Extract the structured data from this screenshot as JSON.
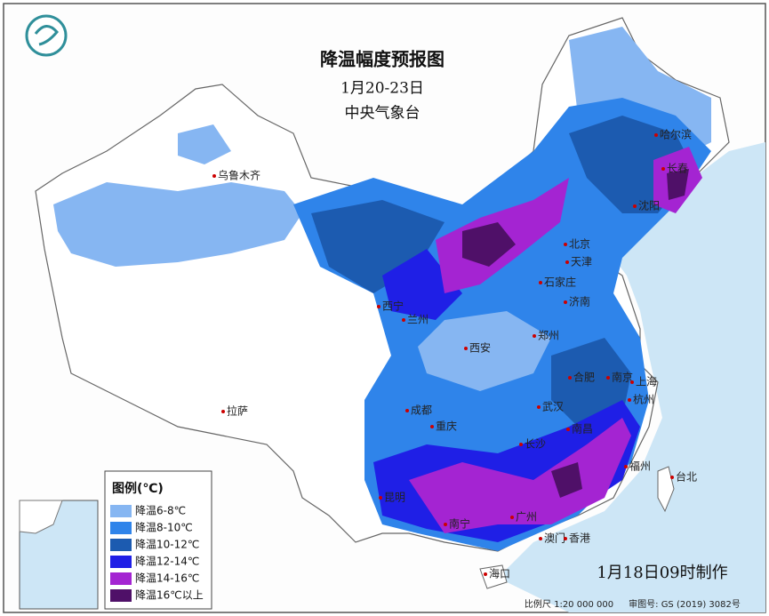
{
  "header": {
    "title": "降温幅度预报图",
    "date": "1月20-23日",
    "issuer": "中央气象台"
  },
  "legend": {
    "title": "图例(℃)",
    "items": [
      {
        "label": "降温6-8℃",
        "color": "#86b6f2"
      },
      {
        "label": "降温8-10℃",
        "color": "#2f84ea"
      },
      {
        "label": "降温10-12℃",
        "color": "#1c5bb0"
      },
      {
        "label": "降温12-14℃",
        "color": "#1f1fe6"
      },
      {
        "label": "降温14-16℃",
        "color": "#a424d2"
      },
      {
        "label": "降温16℃以上",
        "color": "#4f1068"
      }
    ]
  },
  "cities": [
    "乌鲁木齐",
    "哈尔滨",
    "长春",
    "沈阳",
    "北京",
    "天津",
    "石家庄",
    "济南",
    "西宁",
    "兰州",
    "西安",
    "郑州",
    "合肥",
    "南京",
    "上海",
    "杭州",
    "武汉",
    "成都",
    "重庆",
    "长沙",
    "南昌",
    "福州",
    "台北",
    "拉萨",
    "昆明",
    "南宁",
    "广州",
    "澳门",
    "香港",
    "海口"
  ],
  "footer": {
    "issued": "1月18日09时制作",
    "scale": "比例尺 1:20 000 000",
    "approval": "审图号: GS (2019) 3082号"
  }
}
